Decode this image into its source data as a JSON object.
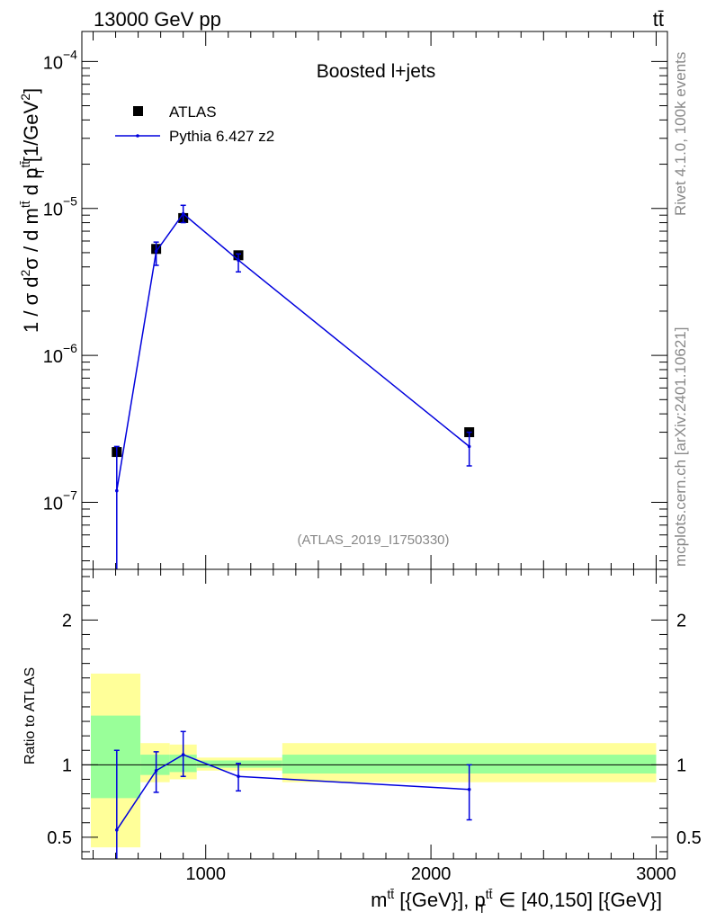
{
  "header": {
    "left": "13000 GeV pp",
    "right": "tt̄"
  },
  "side_labels": {
    "rivet": "Rivet 4.1.0,  100k events",
    "mcplots": "mcplots.cern.ch [arXiv:2401.10621]"
  },
  "chart_data": {
    "type": "scatter",
    "title": "Boosted l+jets",
    "watermark": "(ATLAS_2019_I1750330)",
    "xlabel": "m^{tt̄} [{GeV}], p_T^{tt̄} ∈ [40,150] [{GeV}]",
    "xlabel_parts": {
      "m": "m",
      "tt": "tt̄",
      "unit1": " [{GeV}], p",
      "sub_T": "T",
      "range": " ∈ [40,150] [{GeV}]"
    },
    "ylabel": "1 / σ d²σ / d m^{tt̄} d p_T^{tt̄} [1/GeV²]",
    "ylabel_parts": {
      "pre": "1 / σ d",
      "sq": "2",
      "mid": "σ / d  m",
      "tt": "tt̄",
      "dp": " d p",
      "T": "T",
      "unit": "[1/GeV",
      "unit_end": "]"
    },
    "xlim": [
      450,
      3050
    ],
    "ylim": [
      3.5e-08,
      0.00016
    ],
    "x_ticks": [
      1000,
      2000,
      3000
    ],
    "x_tick_labels": [
      "1000",
      "2000",
      "3000"
    ],
    "y_ticks": [
      1e-07,
      1e-06,
      1e-05,
      0.0001
    ],
    "y_tick_labels": [
      "10",
      "10",
      "10",
      "10"
    ],
    "y_tick_exps": [
      "−7",
      "−6",
      "−5",
      "−4"
    ],
    "legend": [
      {
        "name": "ATLAS",
        "marker": "square",
        "color": "#000000"
      },
      {
        "name": "Pythia 6.427 z2",
        "marker": "line",
        "color": "#0000dd"
      }
    ],
    "series": [
      {
        "name": "ATLAS",
        "x": [
          605,
          780,
          900,
          1145,
          2170
        ],
        "y": [
          2.2e-07,
          5.3e-06,
          8.6e-06,
          4.8e-06,
          3e-07
        ],
        "xerr": [
          8,
          8,
          8,
          8,
          8
        ]
      },
      {
        "name": "Pythia 6.427 z2",
        "x": [
          605,
          780,
          900,
          1145,
          2170
        ],
        "y": [
          1.2e-07,
          5.1e-06,
          9.2e-06,
          4.45e-06,
          2.4e-07
        ],
        "yerr_lo": [
          1.2e-07,
          1e-06,
          1.2e-06,
          7.5e-07,
          6.3e-08
        ],
        "yerr_hi": [
          1.2e-07,
          8e-07,
          1.3e-06,
          4.5e-07,
          6e-08
        ]
      }
    ],
    "ratio": {
      "ylabel": "Ratio to ATLAS",
      "ylim": [
        0.35,
        2.35
      ],
      "y_ticks": [
        0.5,
        1,
        2
      ],
      "y_tick_labels": [
        "0.5",
        "1",
        "2"
      ],
      "bins": [
        {
          "x0": 490,
          "x1": 710,
          "yellow": [
            0.43,
            1.63
          ],
          "green": [
            0.77,
            1.34
          ]
        },
        {
          "x0": 710,
          "x1": 840,
          "yellow": [
            0.88,
            1.15
          ],
          "green": [
            0.93,
            1.07
          ]
        },
        {
          "x0": 840,
          "x1": 960,
          "yellow": [
            0.9,
            1.14
          ],
          "green": [
            0.95,
            1.07
          ]
        },
        {
          "x0": 960,
          "x1": 1340,
          "yellow": [
            0.96,
            1.05
          ],
          "green": [
            0.98,
            1.03
          ]
        },
        {
          "x0": 1340,
          "x1": 3000,
          "yellow": [
            0.88,
            1.15
          ],
          "green": [
            0.94,
            1.07
          ]
        }
      ],
      "mc": {
        "x": [
          605,
          780,
          900,
          1145,
          2170
        ],
        "y": [
          0.55,
          0.96,
          1.07,
          0.92,
          0.83
        ],
        "err_lo": [
          0.55,
          0.15,
          0.15,
          0.1,
          0.21
        ],
        "err_hi": [
          0.55,
          0.13,
          0.16,
          0.09,
          0.17
        ]
      }
    }
  }
}
